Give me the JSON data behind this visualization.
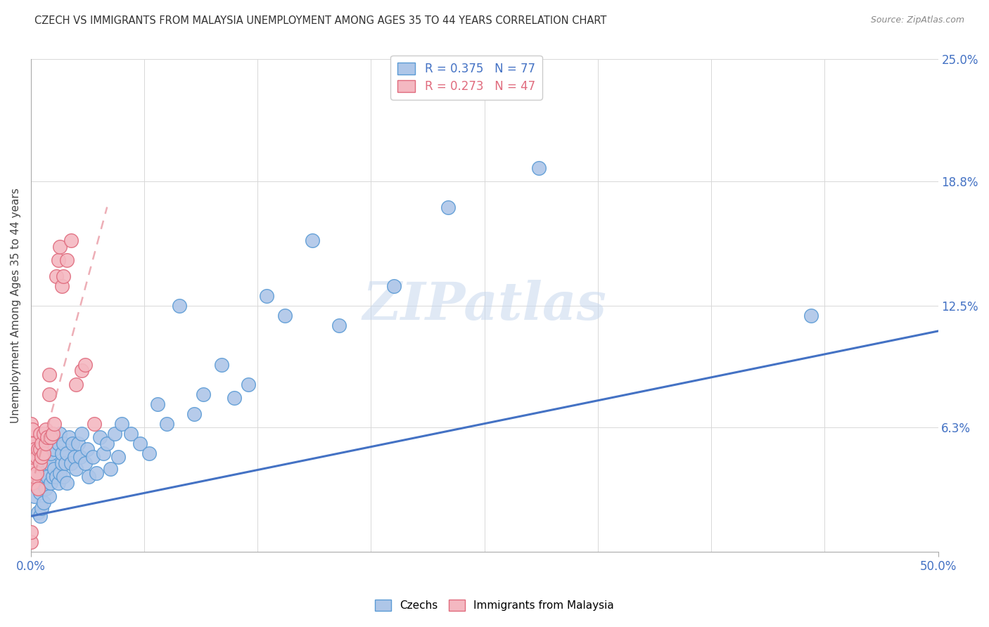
{
  "title": "CZECH VS IMMIGRANTS FROM MALAYSIA UNEMPLOYMENT AMONG AGES 35 TO 44 YEARS CORRELATION CHART",
  "source": "Source: ZipAtlas.com",
  "ylabel": "Unemployment Among Ages 35 to 44 years",
  "xlim": [
    0.0,
    0.5
  ],
  "ylim": [
    0.0,
    0.25
  ],
  "ytick_labels_right": [
    "6.3%",
    "12.5%",
    "18.8%",
    "25.0%"
  ],
  "ytick_vals_right": [
    0.063,
    0.125,
    0.188,
    0.25
  ],
  "legend_r1": "R = 0.375",
  "legend_n1": "N = 77",
  "legend_r2": "R = 0.273",
  "legend_n2": "N = 47",
  "watermark": "ZIPatlas",
  "czech_color": "#aec6e8",
  "czech_edge_color": "#5b9bd5",
  "malaysia_color": "#f4b8c1",
  "malaysia_edge_color": "#e06b7d",
  "blue_line_color": "#4472c4",
  "pink_line_color": "#e8939e",
  "czechs_x": [
    0.002,
    0.002,
    0.003,
    0.003,
    0.004,
    0.004,
    0.004,
    0.005,
    0.005,
    0.005,
    0.006,
    0.006,
    0.007,
    0.007,
    0.008,
    0.008,
    0.009,
    0.009,
    0.01,
    0.01,
    0.011,
    0.011,
    0.012,
    0.012,
    0.013,
    0.013,
    0.014,
    0.015,
    0.015,
    0.016,
    0.016,
    0.017,
    0.017,
    0.018,
    0.018,
    0.019,
    0.02,
    0.02,
    0.021,
    0.022,
    0.023,
    0.024,
    0.025,
    0.026,
    0.027,
    0.028,
    0.03,
    0.031,
    0.032,
    0.034,
    0.036,
    0.038,
    0.04,
    0.042,
    0.044,
    0.046,
    0.048,
    0.05,
    0.055,
    0.06,
    0.065,
    0.07,
    0.075,
    0.082,
    0.09,
    0.095,
    0.105,
    0.112,
    0.12,
    0.13,
    0.14,
    0.155,
    0.17,
    0.2,
    0.23,
    0.28,
    0.43
  ],
  "czechs_y": [
    0.042,
    0.028,
    0.042,
    0.052,
    0.02,
    0.055,
    0.038,
    0.018,
    0.03,
    0.045,
    0.022,
    0.035,
    0.04,
    0.025,
    0.032,
    0.048,
    0.038,
    0.055,
    0.028,
    0.045,
    0.035,
    0.05,
    0.038,
    0.058,
    0.042,
    0.052,
    0.038,
    0.035,
    0.055,
    0.04,
    0.06,
    0.045,
    0.05,
    0.038,
    0.055,
    0.045,
    0.035,
    0.05,
    0.058,
    0.045,
    0.055,
    0.048,
    0.042,
    0.055,
    0.048,
    0.06,
    0.045,
    0.052,
    0.038,
    0.048,
    0.04,
    0.058,
    0.05,
    0.055,
    0.042,
    0.06,
    0.048,
    0.065,
    0.06,
    0.055,
    0.05,
    0.075,
    0.065,
    0.125,
    0.07,
    0.08,
    0.095,
    0.078,
    0.085,
    0.13,
    0.12,
    0.158,
    0.115,
    0.135,
    0.175,
    0.195,
    0.12
  ],
  "malaysia_x": [
    0.0,
    0.0,
    0.0,
    0.0,
    0.0,
    0.0,
    0.0,
    0.0,
    0.0,
    0.0,
    0.001,
    0.001,
    0.001,
    0.001,
    0.001,
    0.002,
    0.002,
    0.003,
    0.003,
    0.004,
    0.004,
    0.005,
    0.005,
    0.005,
    0.006,
    0.006,
    0.007,
    0.007,
    0.008,
    0.008,
    0.009,
    0.01,
    0.01,
    0.011,
    0.012,
    0.013,
    0.014,
    0.015,
    0.016,
    0.017,
    0.018,
    0.02,
    0.022,
    0.025,
    0.028,
    0.03,
    0.035
  ],
  "malaysia_y": [
    0.038,
    0.042,
    0.045,
    0.05,
    0.055,
    0.058,
    0.06,
    0.065,
    0.005,
    0.01,
    0.035,
    0.042,
    0.048,
    0.055,
    0.062,
    0.038,
    0.052,
    0.04,
    0.048,
    0.032,
    0.052,
    0.045,
    0.052,
    0.06,
    0.048,
    0.055,
    0.05,
    0.06,
    0.055,
    0.062,
    0.058,
    0.08,
    0.09,
    0.058,
    0.06,
    0.065,
    0.14,
    0.148,
    0.155,
    0.135,
    0.14,
    0.148,
    0.158,
    0.085,
    0.092,
    0.095,
    0.065
  ],
  "czech_line_x0": 0.0,
  "czech_line_x1": 0.5,
  "czech_line_y0": 0.018,
  "czech_line_y1": 0.112,
  "malaysia_line_x0": 0.0,
  "malaysia_line_x1": 0.042,
  "malaysia_line_y0": 0.032,
  "malaysia_line_y1": 0.175
}
